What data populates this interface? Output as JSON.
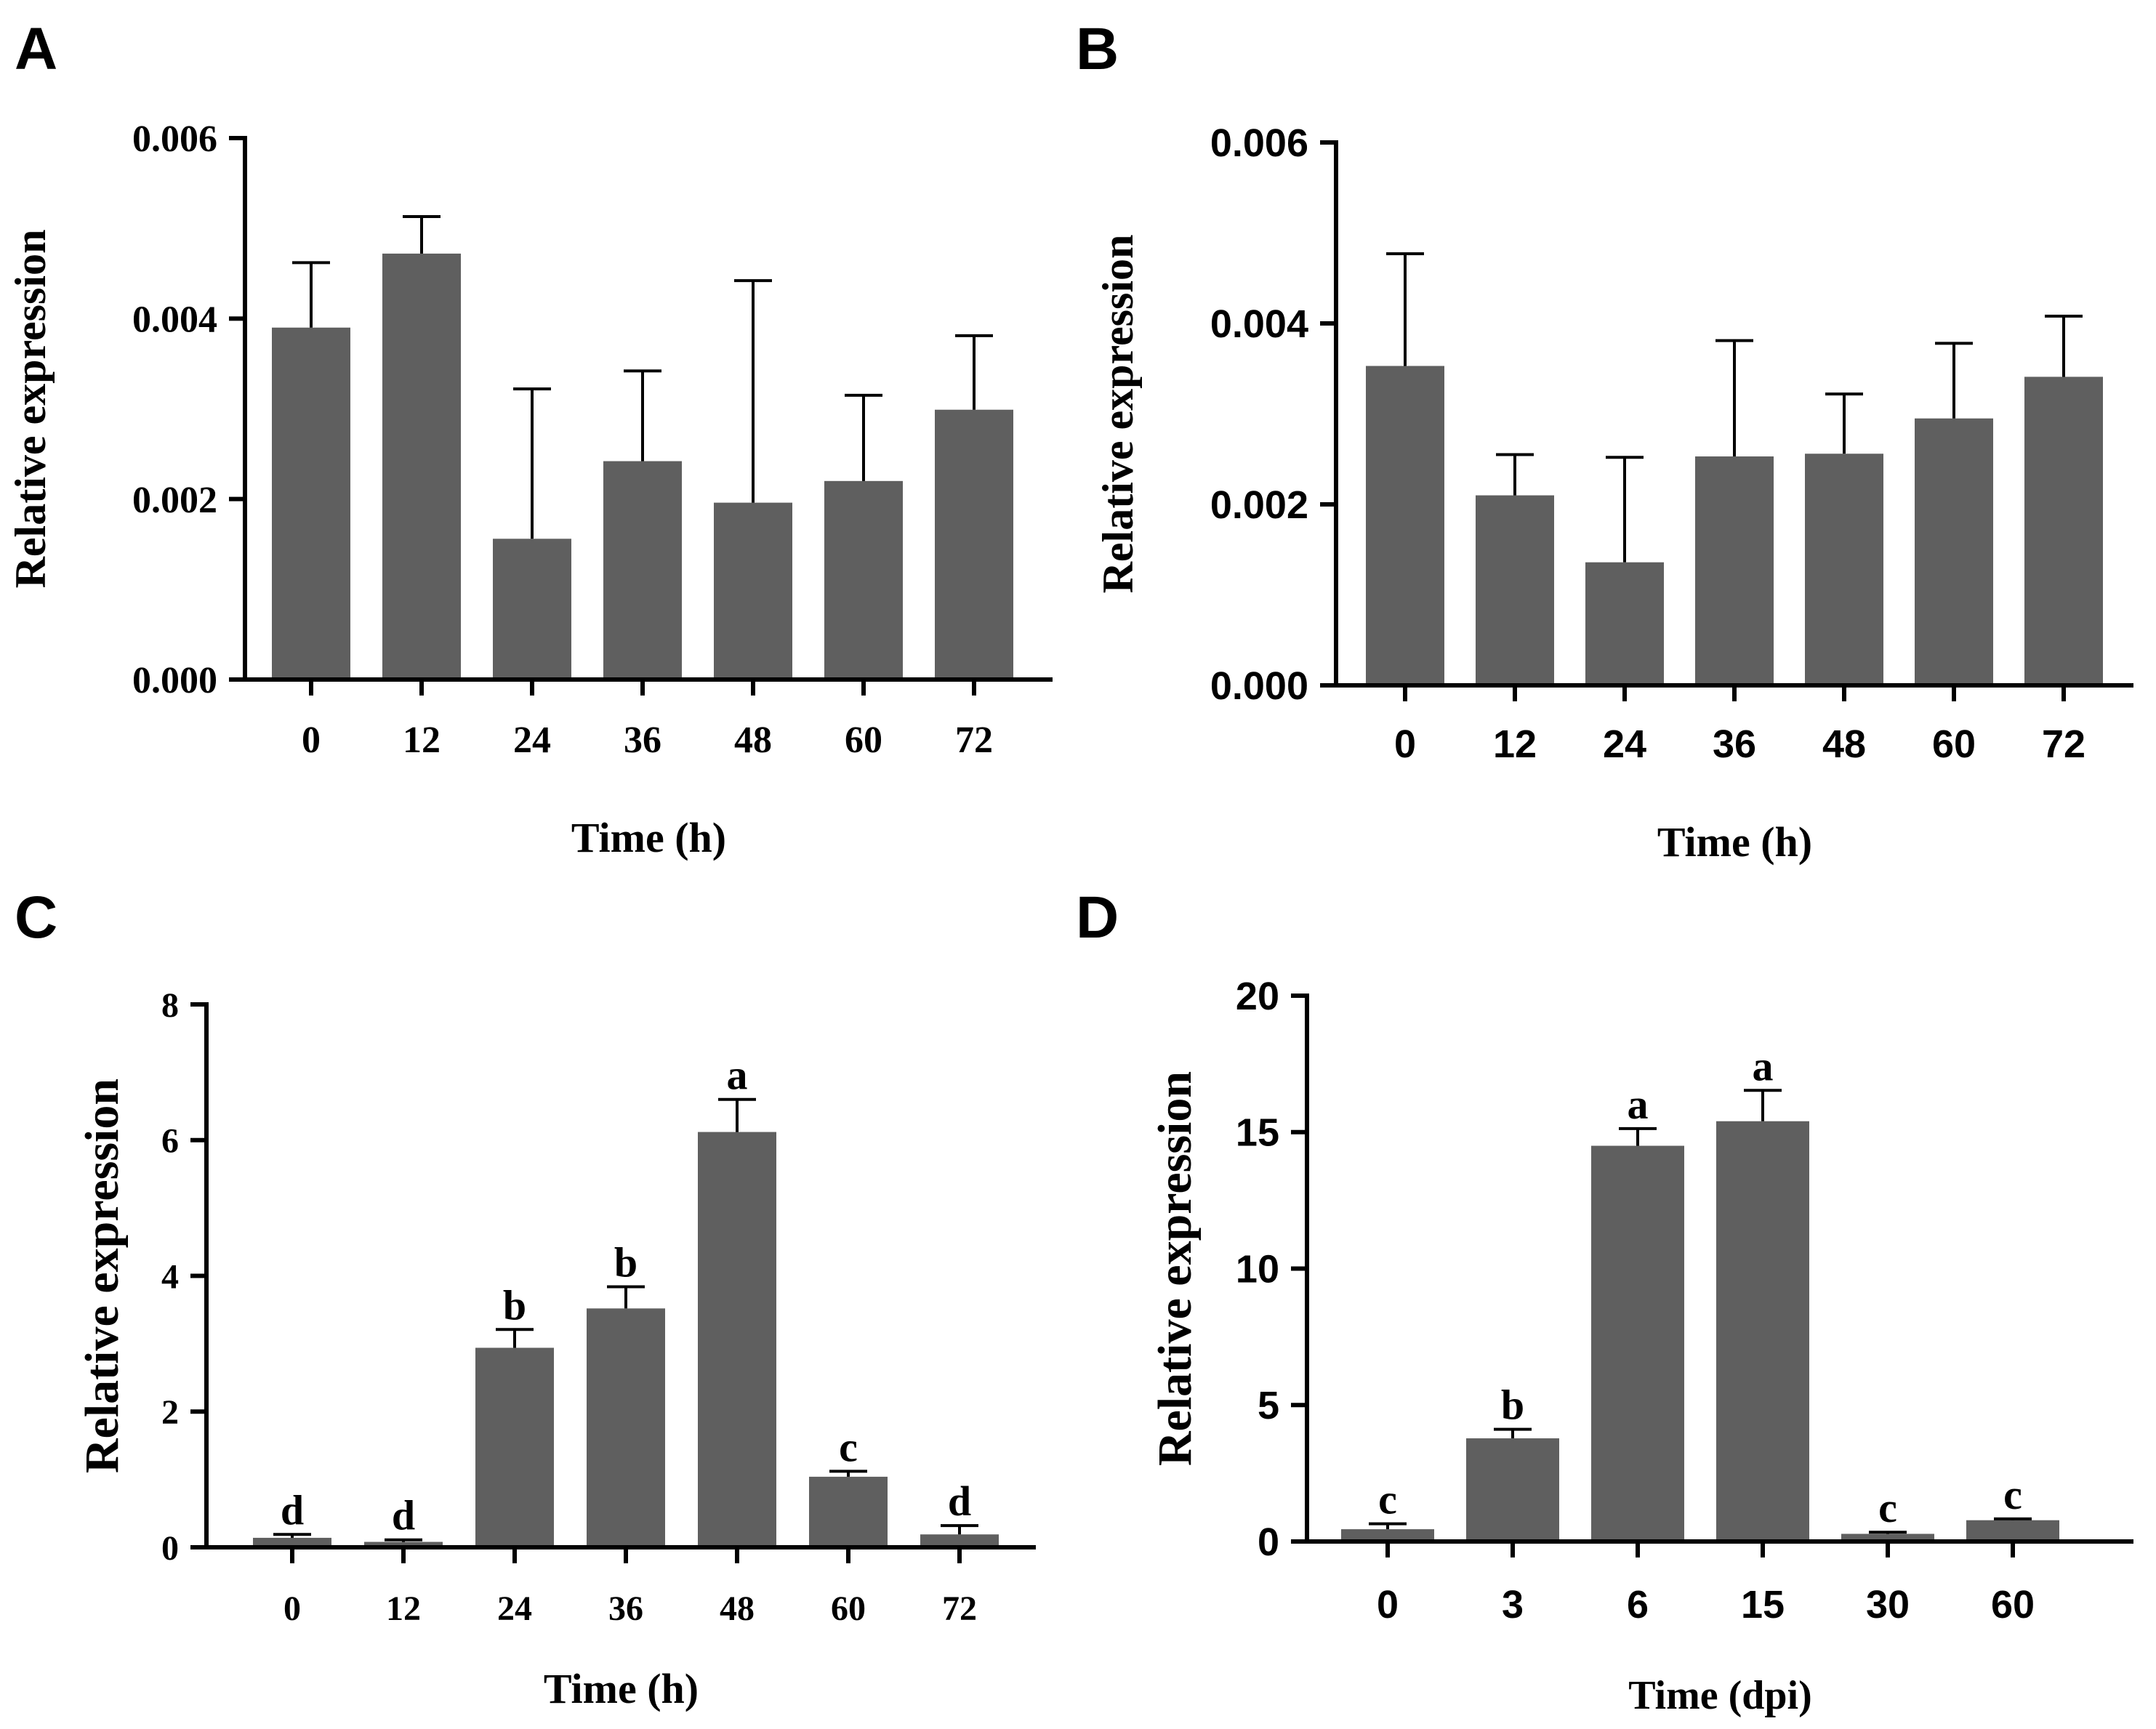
{
  "chart_data": [
    {
      "panel_label": "A",
      "type": "bar",
      "font": "serif",
      "xlabel": "Time (h)",
      "ylabel": "Relative expression",
      "ylim": [
        0,
        0.006
      ],
      "yticks": [
        "0.000",
        "0.002",
        "0.004",
        "0.006"
      ],
      "categories": [
        "0",
        "12",
        "24",
        "36",
        "48",
        "60",
        "72"
      ],
      "values": [
        0.0039,
        0.00472,
        0.00156,
        0.00242,
        0.00196,
        0.0022,
        0.00299
      ],
      "errors": [
        0.00072,
        0.00041,
        0.00166,
        0.001,
        0.00246,
        0.00095,
        0.00082
      ],
      "letters": []
    },
    {
      "panel_label": "B",
      "type": "bar",
      "font": "sans",
      "xlabel": "Time (h)",
      "ylabel": "Relative expression",
      "ylim": [
        0,
        0.006
      ],
      "yticks": [
        "0.000",
        "0.002",
        "0.004",
        "0.006"
      ],
      "categories": [
        "0",
        "12",
        "24",
        "36",
        "48",
        "60",
        "72"
      ],
      "values": [
        0.00353,
        0.0021,
        0.00136,
        0.00253,
        0.00256,
        0.00295,
        0.00341
      ],
      "errors": [
        0.00124,
        0.00045,
        0.00116,
        0.00128,
        0.00066,
        0.00083,
        0.00067
      ],
      "letters": []
    },
    {
      "panel_label": "C",
      "type": "bar",
      "font": "serif",
      "xlabel": "Time (h)",
      "ylabel": "Relative expression",
      "ylim": [
        0,
        8
      ],
      "yticks": [
        "0",
        "2",
        "4",
        "6",
        "8"
      ],
      "categories": [
        "0",
        "12",
        "24",
        "36",
        "48",
        "60",
        "72"
      ],
      "values": [
        0.14,
        0.08,
        2.94,
        3.52,
        6.12,
        1.04,
        0.19
      ],
      "errors": [
        0.05,
        0.03,
        0.27,
        0.32,
        0.48,
        0.08,
        0.13
      ],
      "letters": [
        "d",
        "d",
        "b",
        "b",
        "a",
        "c",
        "d"
      ]
    },
    {
      "panel_label": "D",
      "type": "bar",
      "font": "mixed",
      "xlabel": "Time (dpi)",
      "ylabel": "Relative expression",
      "ylim": [
        0,
        20
      ],
      "yticks": [
        "0",
        "5",
        "10",
        "15",
        "20"
      ],
      "categories": [
        "0",
        "3",
        "6",
        "15",
        "30",
        "60"
      ],
      "values": [
        0.45,
        3.78,
        14.5,
        15.4,
        0.28,
        0.78
      ],
      "errors": [
        0.2,
        0.33,
        0.63,
        1.13,
        0.06,
        0.05
      ],
      "letters": [
        "c",
        "b",
        "a",
        "a",
        "c",
        "c"
      ]
    }
  ]
}
